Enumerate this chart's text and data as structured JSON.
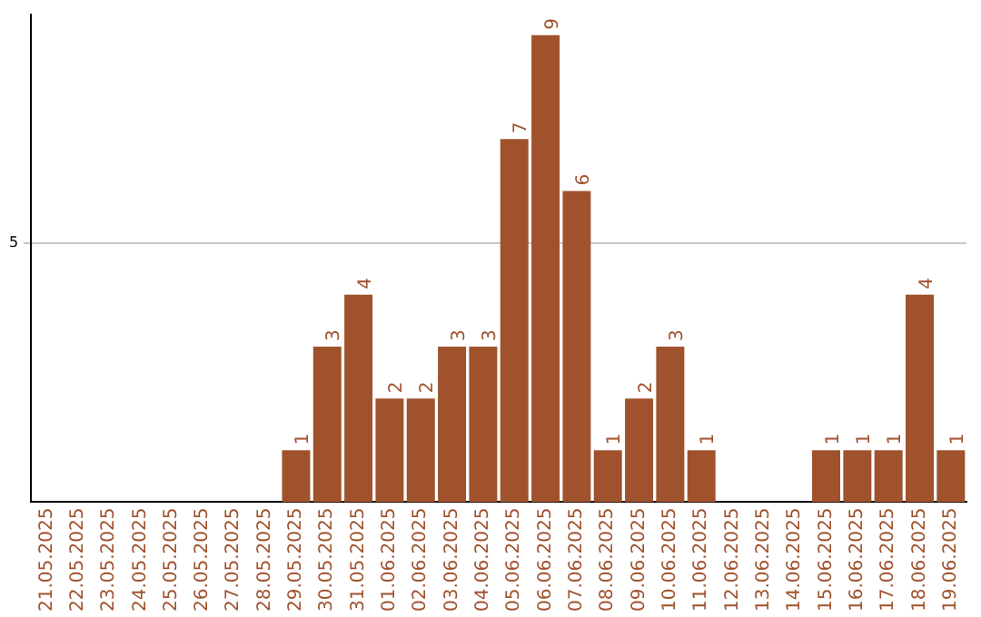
{
  "chart_data": {
    "type": "bar",
    "categories": [
      "21.05.2025",
      "22.05.2025",
      "23.05.2025",
      "24.05.2025",
      "25.05.2025",
      "26.05.2025",
      "27.05.2025",
      "28.05.2025",
      "29.05.2025",
      "30.05.2025",
      "31.05.2025",
      "01.06.2025",
      "02.06.2025",
      "03.06.2025",
      "04.06.2025",
      "05.06.2025",
      "06.06.2025",
      "07.06.2025",
      "08.06.2025",
      "09.06.2025",
      "10.06.2025",
      "11.06.2025",
      "12.06.2025",
      "13.06.2025",
      "14.06.2025",
      "15.06.2025",
      "16.06.2025",
      "17.06.2025",
      "18.06.2025",
      "19.06.2025"
    ],
    "values": [
      0,
      0,
      0,
      0,
      0,
      0,
      0,
      0,
      1,
      3,
      4,
      2,
      2,
      3,
      3,
      7,
      9,
      6,
      1,
      2,
      3,
      1,
      0,
      0,
      0,
      1,
      1,
      1,
      4,
      1
    ],
    "value_labels": [
      null,
      null,
      null,
      null,
      null,
      null,
      null,
      null,
      "1",
      "3",
      "4",
      "2",
      "2",
      "3",
      "3",
      "7",
      "9",
      "6",
      "1",
      "2",
      "3",
      "1",
      null,
      null,
      null,
      "1",
      "1",
      "1",
      "4",
      "1"
    ],
    "color": "#a0522d",
    "ylim": [
      0,
      9.4
    ],
    "yticks": [
      5
    ],
    "grid": "y"
  }
}
